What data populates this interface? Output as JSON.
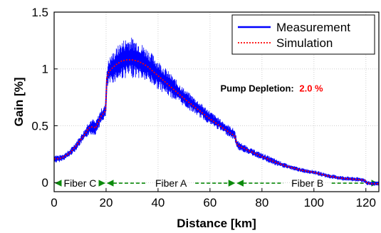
{
  "chart_data": {
    "type": "line",
    "xlabel": "Distance [km]",
    "ylabel": "Gain [%]",
    "xlim": [
      0,
      125
    ],
    "ylim": [
      -0.08,
      1.5
    ],
    "xticks": [
      0,
      20,
      40,
      60,
      80,
      100,
      120
    ],
    "yticks": [
      0,
      0.5,
      1,
      1.5
    ],
    "ytick_labels": [
      "0",
      "0.5",
      "1",
      "1.5"
    ],
    "grid": true,
    "legend_position": "top-right",
    "series": [
      {
        "name": "Measurement",
        "color": "#0000ff",
        "style": "solid",
        "x": [
          0,
          2,
          4,
          6,
          8,
          10,
          12,
          13,
          14,
          15,
          16,
          17,
          18,
          19,
          19.8,
          20.3,
          21,
          22,
          24,
          26,
          28,
          30,
          32,
          34,
          36,
          38,
          40,
          42,
          44,
          46,
          48,
          50,
          55,
          60,
          65,
          69.5,
          70.5,
          75,
          80,
          85,
          90,
          95,
          100,
          105,
          110,
          115,
          118,
          119.5,
          120.5,
          122,
          124,
          125
        ],
        "y": [
          0.21,
          0.21,
          0.23,
          0.26,
          0.31,
          0.37,
          0.43,
          0.47,
          0.49,
          0.49,
          0.48,
          0.53,
          0.58,
          0.61,
          0.63,
          0.92,
          0.97,
          1.0,
          1.04,
          1.08,
          1.1,
          1.1,
          1.09,
          1.06,
          1.03,
          0.99,
          0.95,
          0.91,
          0.87,
          0.83,
          0.79,
          0.75,
          0.66,
          0.57,
          0.49,
          0.42,
          0.33,
          0.28,
          0.23,
          0.18,
          0.14,
          0.11,
          0.09,
          0.06,
          0.04,
          0.03,
          0.025,
          0.02,
          -0.005,
          -0.01,
          -0.01,
          -0.01
        ],
        "noise_band_y": [
          0.04,
          0.03,
          0.03,
          0.03,
          0.04,
          0.04,
          0.05,
          0.06,
          0.07,
          0.07,
          0.06,
          0.06,
          0.07,
          0.06,
          0.06,
          0.1,
          0.12,
          0.13,
          0.15,
          0.17,
          0.18,
          0.18,
          0.17,
          0.16,
          0.15,
          0.14,
          0.13,
          0.12,
          0.11,
          0.1,
          0.09,
          0.08,
          0.07,
          0.06,
          0.05,
          0.05,
          0.04,
          0.03,
          0.03,
          0.03,
          0.02,
          0.02,
          0.02,
          0.02,
          0.02,
          0.02,
          0.02,
          0.02,
          0.02,
          0.02,
          0.02,
          0.02
        ]
      },
      {
        "name": "Simulation",
        "color": "#ff0000",
        "style": "dotted",
        "x": [
          0,
          2,
          4,
          6,
          8,
          10,
          12,
          13,
          14,
          15,
          16,
          17,
          18,
          19,
          19.8,
          20.3,
          21,
          22,
          24,
          26,
          28,
          30,
          32,
          34,
          36,
          38,
          40,
          42,
          44,
          46,
          48,
          50,
          55,
          60,
          65,
          69.5,
          70.5,
          75,
          80,
          85,
          90,
          95,
          100,
          105,
          110,
          115,
          118,
          119.5,
          120.5,
          122,
          124,
          125
        ],
        "y": [
          0.21,
          0.21,
          0.23,
          0.26,
          0.31,
          0.37,
          0.43,
          0.47,
          0.49,
          0.49,
          0.48,
          0.53,
          0.58,
          0.61,
          0.63,
          0.92,
          0.97,
          1.0,
          1.04,
          1.07,
          1.08,
          1.08,
          1.07,
          1.05,
          1.02,
          0.98,
          0.94,
          0.9,
          0.86,
          0.82,
          0.78,
          0.74,
          0.65,
          0.56,
          0.48,
          0.41,
          0.33,
          0.28,
          0.23,
          0.18,
          0.14,
          0.11,
          0.09,
          0.06,
          0.04,
          0.03,
          0.025,
          0.02,
          -0.005,
          -0.01,
          -0.01,
          -0.01
        ]
      }
    ],
    "annotations": [
      {
        "label": "Pump Depletion:",
        "value": "2.0 %",
        "x": 64,
        "y": 0.8,
        "value_color": "#ff0000"
      }
    ],
    "segments": [
      {
        "label": "Fiber C",
        "start": 0,
        "end": 20,
        "y": -0.005,
        "color": "#0b8a0b"
      },
      {
        "label": "Fiber A",
        "start": 20,
        "end": 70,
        "y": -0.005,
        "color": "#0b8a0b"
      },
      {
        "label": "Fiber B",
        "start": 70,
        "end": 125,
        "y": -0.005,
        "color": "#0b8a0b"
      }
    ]
  }
}
